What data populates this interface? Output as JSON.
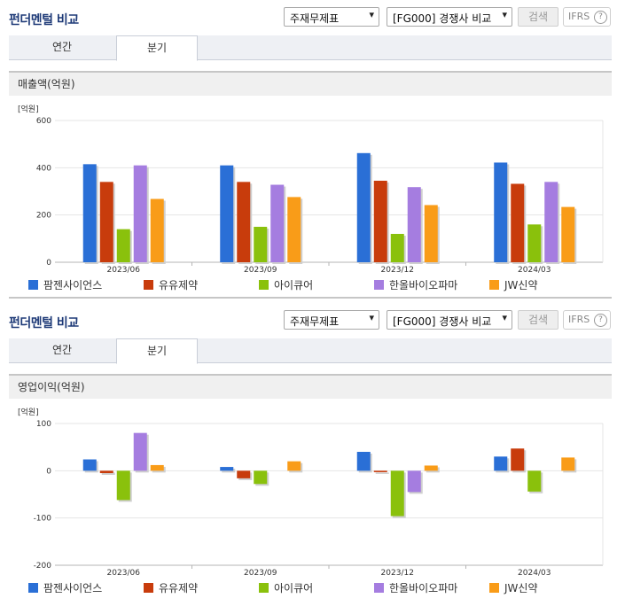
{
  "colors": [
    "#2a6fd6",
    "#c83c0c",
    "#8ac10c",
    "#a57de0",
    "#f99c18"
  ],
  "panels": [
    {
      "title": "펀더멘털 비교",
      "select1": "주재무제표",
      "select2": "[FG000] 경쟁사 비교",
      "search_label": "검색",
      "ifrs_label": "IFRS",
      "help_glyph": "?",
      "tabs": [
        "연간",
        "분기"
      ],
      "section_title": "매출액(억원)"
    },
    {
      "title": "펀더멘털 비교",
      "select1": "주재무제표",
      "select2": "[FG000] 경쟁사 비교",
      "search_label": "검색",
      "ifrs_label": "IFRS",
      "help_glyph": "?",
      "tabs": [
        "연간",
        "분기"
      ],
      "section_title": "영업이익(억원)"
    }
  ],
  "chart_data": [
    {
      "type": "bar",
      "unit": "[억원]",
      "categories": [
        "2023/06",
        "2023/09",
        "2023/12",
        "2024/03"
      ],
      "ylim": [
        0,
        600
      ],
      "yticks": [
        0,
        200,
        400,
        600
      ],
      "grid": true,
      "legend": "bottom",
      "series": [
        {
          "name": "팜젠사이언스",
          "values": [
            415,
            410,
            462,
            422
          ]
        },
        {
          "name": "유유제약",
          "values": [
            340,
            340,
            345,
            332
          ]
        },
        {
          "name": "아이큐어",
          "values": [
            140,
            150,
            120,
            160
          ]
        },
        {
          "name": "한올바이오파마",
          "values": [
            410,
            328,
            318,
            340
          ]
        },
        {
          "name": "JW신약",
          "values": [
            268,
            276,
            242,
            234
          ]
        }
      ]
    },
    {
      "type": "bar",
      "unit": "[억원]",
      "categories": [
        "2023/06",
        "2023/09",
        "2023/12",
        "2024/03"
      ],
      "ylim": [
        -200,
        100
      ],
      "yticks": [
        -200,
        -100,
        0,
        100
      ],
      "grid": true,
      "legend": "bottom",
      "series": [
        {
          "name": "팜젠사이언스",
          "values": [
            24,
            8,
            40,
            30
          ]
        },
        {
          "name": "유유제약",
          "values": [
            -5,
            -16,
            -3,
            47
          ]
        },
        {
          "name": "아이큐어",
          "values": [
            -62,
            -28,
            -96,
            -44
          ]
        },
        {
          "name": "한올바이오파마",
          "values": [
            80,
            0,
            -45,
            0
          ]
        },
        {
          "name": "JW신약",
          "values": [
            12,
            20,
            11,
            28
          ]
        }
      ]
    }
  ]
}
